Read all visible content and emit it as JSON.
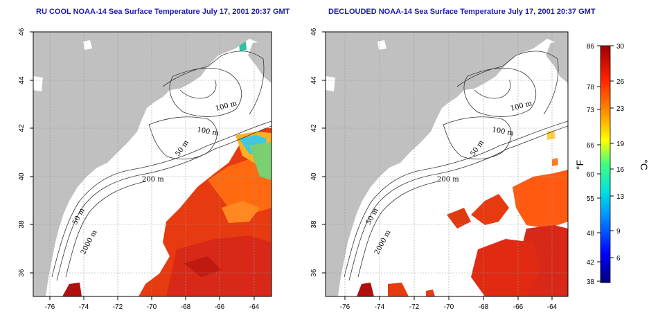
{
  "titles": {
    "left": "RU COOL NOAA-14 Sea Surface Temperature July 17, 2001 20:37 GMT",
    "right": "DECLOUDED NOAA-14 Sea Surface Temperature July 17, 2001 20:37 GMT"
  },
  "map": {
    "lon_range": [
      -77,
      -63
    ],
    "lat_range": [
      35,
      46
    ],
    "lon_ticks": [
      -76,
      -74,
      -72,
      -70,
      -68,
      -66,
      -64
    ],
    "lat_ticks": [
      36,
      38,
      40,
      42,
      44,
      46
    ],
    "land_color": "#c0c0c0",
    "gridlines": "dashed",
    "contour_labels": [
      "100 m",
      "100 m",
      "50 m",
      "200 m",
      "50 m",
      "2000 m"
    ]
  },
  "colorbar": {
    "fahrenheit_ticks": [
      "86",
      "78",
      "73",
      "66",
      "60",
      "55",
      "48",
      "42",
      "38"
    ],
    "celsius_ticks": [
      "30",
      "26",
      "23",
      "19",
      "16",
      "13",
      "9",
      "6"
    ],
    "fahrenheit_unit": "°F",
    "celsius_unit": "°C",
    "range_c": [
      3.3,
      30
    ],
    "colors": [
      "#00007a",
      "#0000ff",
      "#0090ff",
      "#00e0e0",
      "#40ff80",
      "#ffff00",
      "#ff9000",
      "#ff2000",
      "#a00000"
    ]
  }
}
